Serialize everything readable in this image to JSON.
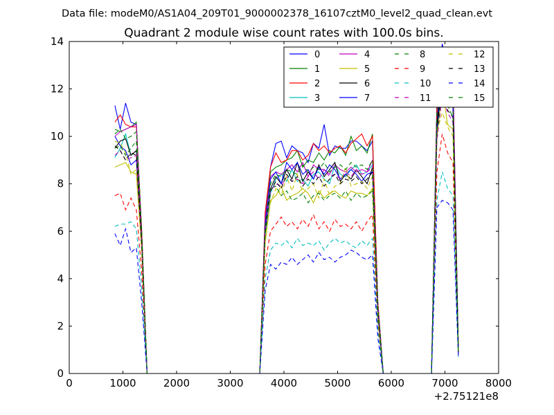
{
  "chart_data": {
    "type": "line",
    "suptitle": "Data file: modeM0/AS1A04_209T01_9000002378_16107cztM0_level2_quad_clean.evt",
    "title": "Quadrant 2 module wise count rates with 100.0s bins.",
    "xlabel": "",
    "ylabel": "",
    "x_offset_label": "+2.75121e8",
    "xlim": [
      0,
      8000
    ],
    "ylim": [
      0,
      14
    ],
    "x_ticks": [
      0,
      1000,
      2000,
      3000,
      4000,
      5000,
      6000,
      7000,
      8000
    ],
    "y_ticks": [
      0,
      2,
      4,
      6,
      8,
      10,
      12,
      14
    ],
    "grid": false,
    "legend_position": "top-right",
    "x": [
      850,
      950,
      1050,
      1150,
      1250,
      1350,
      1450,
      1550,
      3350,
      3450,
      3550,
      3650,
      3750,
      3850,
      3950,
      4050,
      4150,
      4250,
      4350,
      4450,
      4550,
      4650,
      4750,
      4850,
      4950,
      5050,
      5150,
      5250,
      5350,
      5450,
      5550,
      5650,
      5750,
      5850,
      5950,
      6750,
      6850,
      6950,
      7050,
      7150,
      7250
    ],
    "series": [
      {
        "name": "0",
        "color": "#0000ff",
        "dash": false,
        "values": [
          11.3,
          10.3,
          11.4,
          10.6,
          10.5,
          6.0,
          0.0,
          0,
          0,
          0,
          0,
          6.5,
          8.7,
          9.7,
          9.8,
          9.1,
          9.6,
          9.4,
          9.3,
          8.9,
          9.7,
          9.5,
          10.5,
          9.2,
          9.6,
          9.5,
          9.5,
          9.8,
          9.8,
          9.6,
          9.4,
          9.8,
          3.0,
          0,
          0,
          0,
          11.5,
          13.9,
          12.9,
          12.6,
          1.0
        ]
      },
      {
        "name": "1",
        "color": "#008000",
        "dash": false,
        "values": [
          10.3,
          10.2,
          10.3,
          10.4,
          10.6,
          6.0,
          0.0,
          0,
          0,
          0,
          0,
          6.5,
          8.5,
          8.7,
          8.8,
          9.0,
          9.1,
          9.4,
          8.7,
          9.0,
          8.9,
          9.3,
          9.0,
          9.4,
          9.3,
          9.6,
          9.2,
          10.0,
          9.4,
          9.6,
          9.3,
          10.1,
          3.0,
          0,
          0,
          0,
          11.0,
          13.2,
          12.2,
          11.8,
          0.9
        ]
      },
      {
        "name": "2",
        "color": "#ff0000",
        "dash": false,
        "values": [
          10.6,
          10.9,
          10.5,
          10.4,
          10.4,
          6.0,
          0.0,
          0,
          0,
          0,
          0,
          6.8,
          8.7,
          9.3,
          8.9,
          9.0,
          9.4,
          9.4,
          9.0,
          9.2,
          9.7,
          9.4,
          9.6,
          9.3,
          9.5,
          9.6,
          9.3,
          9.7,
          9.9,
          10.1,
          9.6,
          10.0,
          3.0,
          0,
          0,
          0,
          11.3,
          13.0,
          12.7,
          12.4,
          1.0
        ]
      },
      {
        "name": "3",
        "color": "#00bfbf",
        "dash": false,
        "values": [
          9.1,
          9.5,
          10.1,
          9.2,
          9.4,
          5.6,
          0.0,
          0,
          0,
          0,
          0,
          5.8,
          7.6,
          8.2,
          8.4,
          8.1,
          8.6,
          8.1,
          8.2,
          7.9,
          8.4,
          8.5,
          8.2,
          8.0,
          8.8,
          8.4,
          8.3,
          8.6,
          8.8,
          8.4,
          8.5,
          8.8,
          2.7,
          0,
          0,
          0,
          10.5,
          12.8,
          12.1,
          11.5,
          0.9
        ]
      },
      {
        "name": "4",
        "color": "#bf00bf",
        "dash": false,
        "values": [
          10.0,
          10.2,
          10.3,
          10.4,
          10.5,
          5.8,
          0.0,
          0,
          0,
          0,
          0,
          6.5,
          8.3,
          8.5,
          8.4,
          8.6,
          8.8,
          8.5,
          8.9,
          8.3,
          8.8,
          8.6,
          8.6,
          8.4,
          8.8,
          8.6,
          8.5,
          8.7,
          8.5,
          8.6,
          8.5,
          9.0,
          2.8,
          0,
          0,
          0,
          10.7,
          12.9,
          12.5,
          12.0,
          0.9
        ]
      },
      {
        "name": "5",
        "color": "#bfbf00",
        "dash": false,
        "values": [
          8.7,
          8.8,
          8.9,
          8.5,
          8.4,
          5.2,
          0.0,
          0,
          0,
          0,
          0,
          5.5,
          7.3,
          7.5,
          7.9,
          7.3,
          7.5,
          7.6,
          7.8,
          7.6,
          7.2,
          7.7,
          7.4,
          7.6,
          7.7,
          7.5,
          7.4,
          7.7,
          7.6,
          7.6,
          7.5,
          7.8,
          2.4,
          0,
          0,
          0,
          9.9,
          12.0,
          10.5,
          10.3,
          0.8
        ]
      },
      {
        "name": "6",
        "color": "#000000",
        "dash": false,
        "values": [
          9.5,
          9.8,
          9.9,
          9.2,
          9.4,
          5.6,
          0.0,
          0,
          0,
          0,
          0,
          6.0,
          7.8,
          8.3,
          8.0,
          8.6,
          8.2,
          8.9,
          8.1,
          8.5,
          8.2,
          8.8,
          8.3,
          8.6,
          8.9,
          8.1,
          8.4,
          8.2,
          8.6,
          8.3,
          8.0,
          8.7,
          2.6,
          0,
          0,
          0,
          10.6,
          12.4,
          11.7,
          11.2,
          0.9
        ]
      },
      {
        "name": "7",
        "color": "#0000ff",
        "dash": false,
        "values": [
          10.0,
          9.6,
          9.4,
          8.8,
          9.0,
          5.4,
          0.0,
          0,
          0,
          0,
          0,
          6.3,
          8.2,
          8.5,
          8.0,
          8.9,
          8.6,
          8.9,
          8.4,
          8.6,
          8.2,
          8.7,
          8.4,
          8.8,
          8.6,
          8.2,
          8.4,
          8.6,
          8.4,
          8.1,
          8.4,
          8.5,
          2.7,
          0,
          0,
          0,
          10.2,
          12.6,
          11.6,
          11.2,
          0.9
        ]
      },
      {
        "name": "8",
        "color": "#008000",
        "dash": true,
        "values": [
          9.5,
          9.6,
          9.2,
          9.5,
          9.8,
          5.5,
          0.0,
          0,
          0,
          0,
          0,
          5.9,
          7.8,
          7.9,
          7.5,
          7.7,
          7.3,
          7.4,
          7.6,
          7.2,
          7.5,
          7.6,
          7.3,
          7.5,
          7.6,
          7.4,
          7.7,
          7.3,
          7.6,
          7.4,
          7.5,
          7.7,
          2.4,
          0,
          0,
          0,
          10.0,
          12.2,
          11.3,
          10.8,
          0.9
        ]
      },
      {
        "name": "9",
        "color": "#ff0000",
        "dash": true,
        "values": [
          7.5,
          7.6,
          6.9,
          7.4,
          6.9,
          4.3,
          0.0,
          0,
          0,
          0,
          0,
          4.6,
          6.0,
          6.3,
          6.6,
          6.2,
          6.4,
          6.1,
          6.5,
          6.2,
          6.7,
          6.1,
          6.4,
          6.0,
          6.5,
          6.2,
          6.3,
          6.1,
          6.4,
          6.0,
          6.4,
          6.7,
          2.0,
          0,
          0,
          0,
          8.5,
          10.1,
          9.3,
          8.9,
          0.8
        ]
      },
      {
        "name": "10",
        "color": "#00bfbf",
        "dash": true,
        "values": [
          6.2,
          6.3,
          6.3,
          6.4,
          6.1,
          3.6,
          0.0,
          0,
          0,
          0,
          0,
          4.0,
          5.2,
          5.5,
          5.4,
          5.6,
          5.3,
          5.7,
          5.4,
          5.5,
          5.4,
          5.6,
          5.2,
          5.5,
          5.7,
          5.5,
          5.6,
          5.4,
          5.3,
          5.6,
          5.4,
          5.7,
          1.8,
          0,
          0,
          0,
          7.3,
          8.5,
          7.8,
          7.5,
          0.7
        ]
      },
      {
        "name": "11",
        "color": "#bf00bf",
        "dash": true,
        "values": [
          9.2,
          9.4,
          9.0,
          9.1,
          9.2,
          5.4,
          0.0,
          0,
          0,
          0,
          0,
          6.0,
          7.7,
          8.0,
          7.9,
          8.3,
          8.1,
          8.2,
          8.0,
          8.3,
          8.5,
          8.2,
          8.6,
          8.3,
          8.4,
          8.2,
          8.5,
          8.3,
          8.6,
          8.4,
          8.5,
          8.7,
          2.6,
          0,
          0,
          0,
          9.8,
          11.7,
          11.0,
          10.6,
          0.9
        ]
      },
      {
        "name": "12",
        "color": "#bfbf00",
        "dash": true,
        "values": [
          9.8,
          9.7,
          9.3,
          8.4,
          8.6,
          5.2,
          0.0,
          0,
          0,
          0,
          0,
          5.7,
          7.2,
          7.8,
          7.5,
          8.3,
          7.7,
          8.4,
          7.6,
          7.8,
          8.0,
          7.4,
          8.2,
          7.5,
          7.9,
          8.0,
          8.7,
          7.9,
          8.0,
          8.1,
          7.8,
          8.3,
          2.5,
          0,
          0,
          0,
          10.2,
          11.0,
          10.4,
          10.0,
          0.8
        ]
      },
      {
        "name": "13",
        "color": "#000000",
        "dash": true,
        "values": [
          9.6,
          9.4,
          9.0,
          9.3,
          9.2,
          5.5,
          0.0,
          0,
          0,
          0,
          0,
          6.0,
          7.7,
          8.1,
          7.8,
          8.4,
          8.1,
          8.3,
          7.9,
          8.2,
          8.0,
          8.3,
          7.9,
          8.2,
          8.4,
          8.0,
          8.2,
          8.1,
          8.3,
          8.0,
          8.2,
          8.5,
          2.6,
          0,
          0,
          0,
          10.4,
          12.0,
          11.1,
          10.8,
          0.9
        ]
      },
      {
        "name": "14",
        "color": "#0000ff",
        "dash": true,
        "values": [
          5.9,
          5.4,
          6.1,
          5.1,
          5.3,
          3.0,
          0.0,
          0,
          0,
          0,
          0,
          3.5,
          4.6,
          4.4,
          4.7,
          4.6,
          4.9,
          4.6,
          4.8,
          5.0,
          4.7,
          5.1,
          4.8,
          4.9,
          4.7,
          4.9,
          5.0,
          5.2,
          5.1,
          4.9,
          4.8,
          5.0,
          1.5,
          0,
          0,
          0,
          7.0,
          7.3,
          7.2,
          6.9,
          0.7
        ]
      },
      {
        "name": "15",
        "color": "#008000",
        "dash": true,
        "values": [
          10.1,
          10.3,
          9.9,
          10.0,
          10.2,
          6.0,
          0.0,
          0,
          0,
          0,
          0,
          6.2,
          8.0,
          8.4,
          8.3,
          8.6,
          8.5,
          8.4,
          8.8,
          8.5,
          8.7,
          8.6,
          8.9,
          8.5,
          8.7,
          8.8,
          8.6,
          8.9,
          8.7,
          8.8,
          8.6,
          9.0,
          2.8,
          0,
          0,
          0,
          11.0,
          12.8,
          11.9,
          11.4,
          0.9
        ]
      }
    ]
  }
}
